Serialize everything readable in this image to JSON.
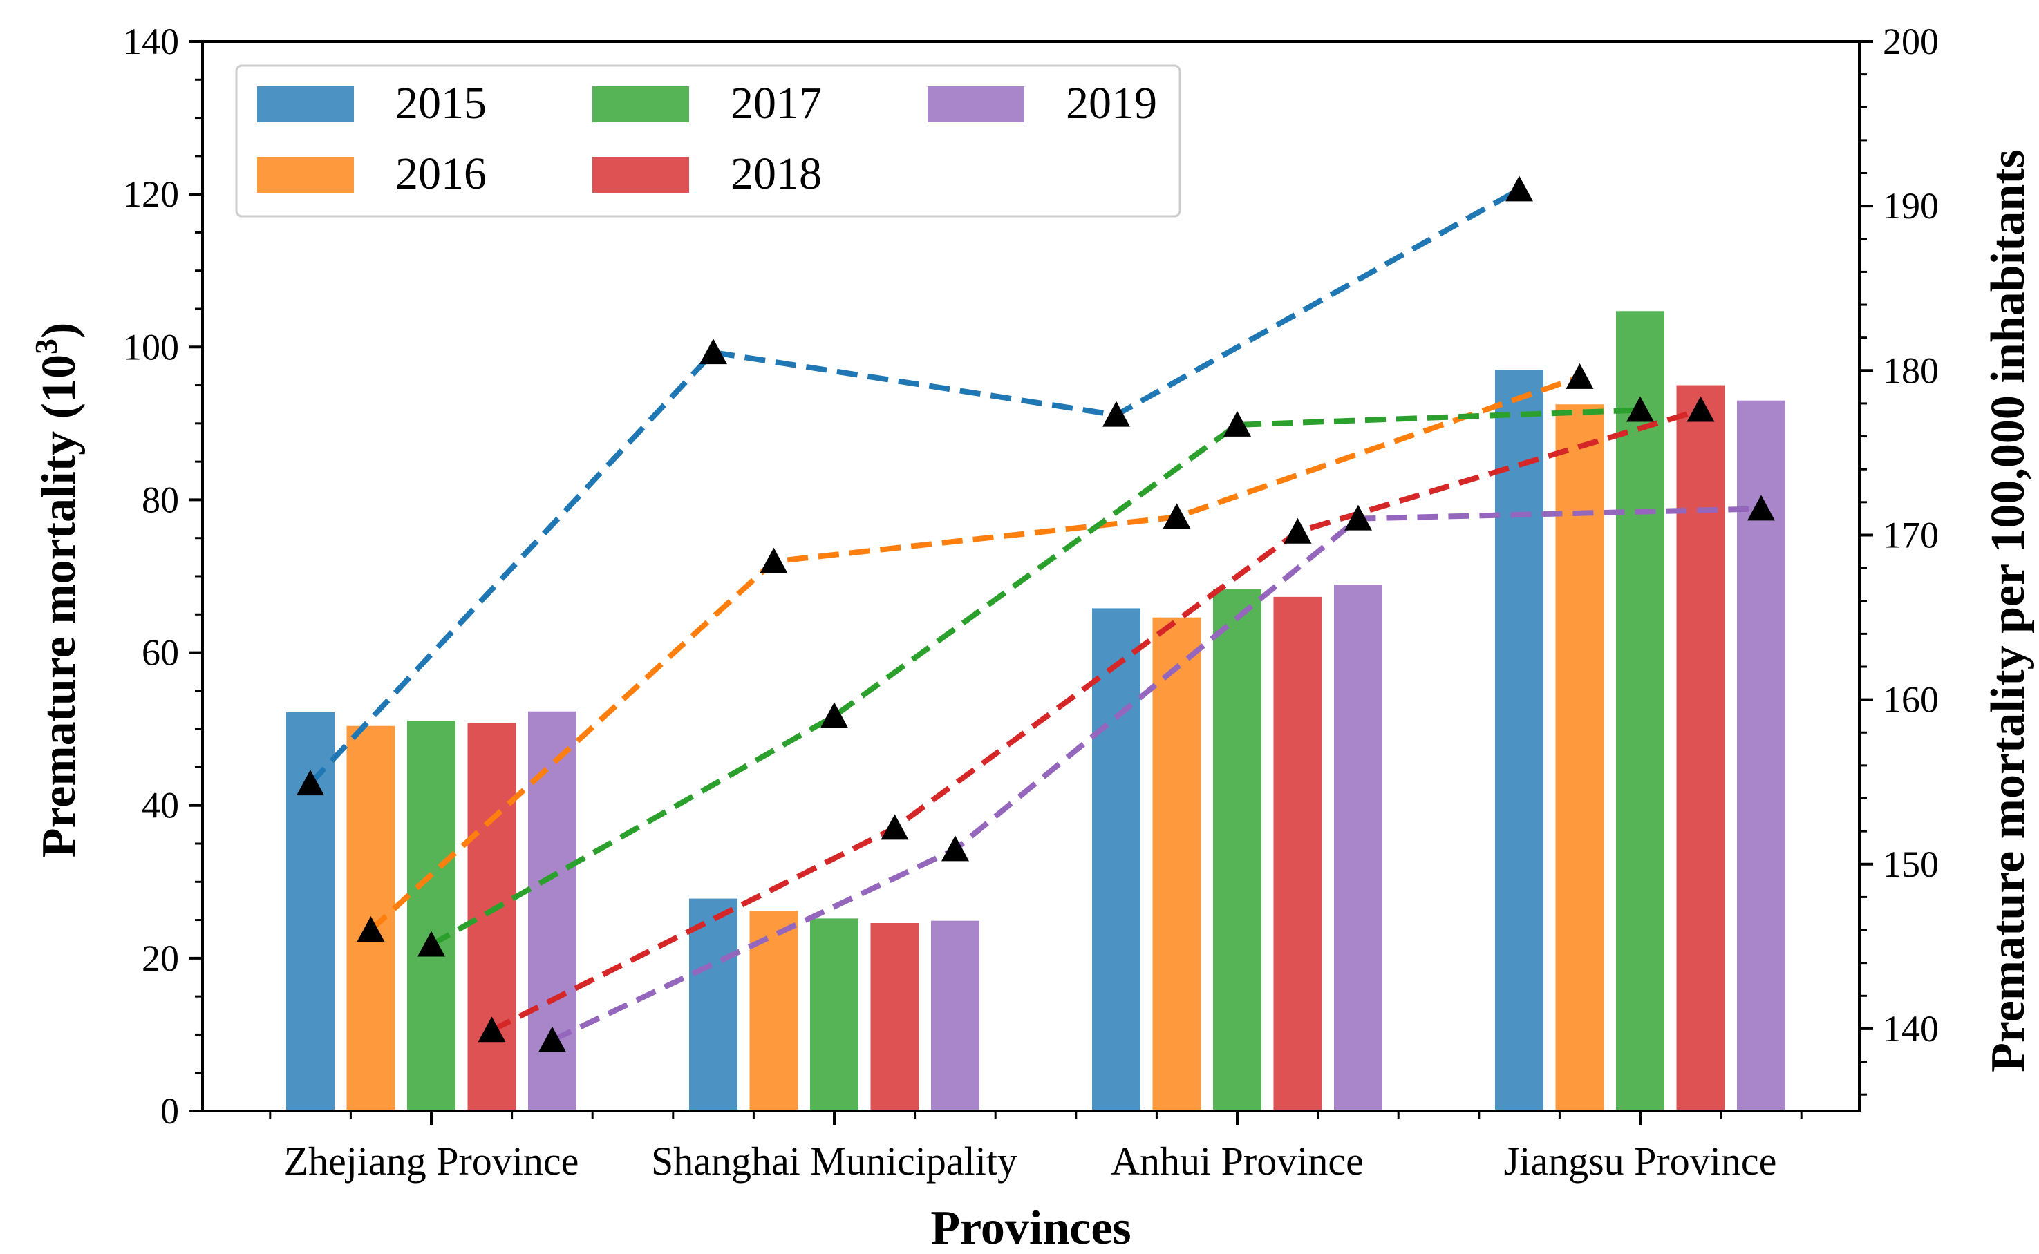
{
  "chart_data": {
    "type": "bar",
    "xlabel": "Provinces",
    "ylabel": "Premature mortality (10",
    "ylabel_sup": "3",
    "ylabel_close": ")",
    "y2label": "Premature mortality per 100,000 inhabitants",
    "ylim": [
      0,
      140
    ],
    "y2lim": [
      135,
      200
    ],
    "yticks": [
      "0",
      "20",
      "40",
      "60",
      "80",
      "100",
      "120",
      "140"
    ],
    "y2ticks": [
      "140",
      "150",
      "160",
      "170",
      "180",
      "190",
      "200"
    ],
    "categories": [
      "Zhejiang Province",
      "Shanghai Municipality",
      "Anhui Province",
      "Jiangsu Province"
    ],
    "legend_position": "top-left",
    "series": [
      {
        "name": "2015",
        "color": "#1f77b4",
        "bar_values": [
          52.2,
          27.8,
          65.8,
          97.0
        ],
        "line_values": [
          154.9,
          181.1,
          177.3,
          191.0
        ]
      },
      {
        "name": "2016",
        "color": "#ff7f0e",
        "bar_values": [
          50.4,
          26.2,
          64.6,
          92.5
        ],
        "line_values": [
          146.0,
          168.4,
          171.1,
          179.6
        ]
      },
      {
        "name": "2017",
        "color": "#2ca02c",
        "bar_values": [
          51.1,
          25.2,
          68.3,
          104.7
        ],
        "line_values": [
          145.1,
          159.0,
          176.7,
          177.6
        ]
      },
      {
        "name": "2018",
        "color": "#d62728",
        "bar_values": [
          50.8,
          24.6,
          67.3,
          95.0
        ],
        "line_values": [
          139.9,
          152.2,
          170.2,
          177.6
        ]
      },
      {
        "name": "2019",
        "color": "#9467bd",
        "bar_values": [
          52.3,
          24.9,
          68.9,
          93.0
        ],
        "line_values": [
          139.3,
          150.9,
          171.0,
          171.6
        ]
      }
    ]
  }
}
